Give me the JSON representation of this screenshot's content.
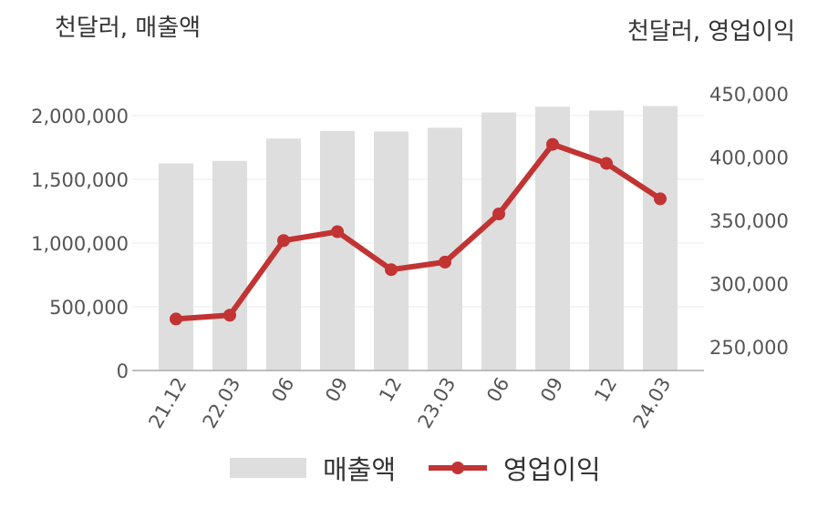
{
  "units": {
    "left": "천달러, 매출액",
    "right": "천달러, 영업이익"
  },
  "legend": {
    "revenue": "매출액",
    "operating_profit": "영업이익"
  },
  "colors": {
    "bar": "#dedede",
    "line": "#c23333",
    "axis": "#aaaaaa",
    "grid": "#ebebeb"
  },
  "chart_data": {
    "type": "bar",
    "categories": [
      "21.12",
      "22.03",
      "06",
      "09",
      "12",
      "23.03",
      "06",
      "09",
      "12",
      "24.03"
    ],
    "series": [
      {
        "name": "매출액",
        "type": "bar",
        "axis": "left",
        "values": [
          1625000,
          1645000,
          1820000,
          1880000,
          1875000,
          1905000,
          2025000,
          2070000,
          2040000,
          2075000
        ]
      },
      {
        "name": "영업이익",
        "type": "line",
        "axis": "right",
        "values": [
          272000,
          275000,
          334000,
          341000,
          311000,
          317000,
          355000,
          410000,
          395000,
          367000
        ]
      }
    ],
    "y_left": {
      "ylim": [
        0,
        2000000
      ],
      "ticks": [
        0,
        500000,
        1000000,
        1500000,
        2000000
      ],
      "tick_labels": [
        "0",
        "500,000",
        "1,000,000",
        "1,500,000",
        "2,000,000"
      ]
    },
    "y_right": {
      "ylim": [
        250000,
        450000
      ],
      "ticks": [
        250000,
        300000,
        350000,
        400000,
        450000
      ],
      "tick_labels": [
        "250,000",
        "300,000",
        "350,000",
        "400,000",
        "450,000"
      ]
    },
    "grid": true,
    "legend_position": "bottom"
  }
}
